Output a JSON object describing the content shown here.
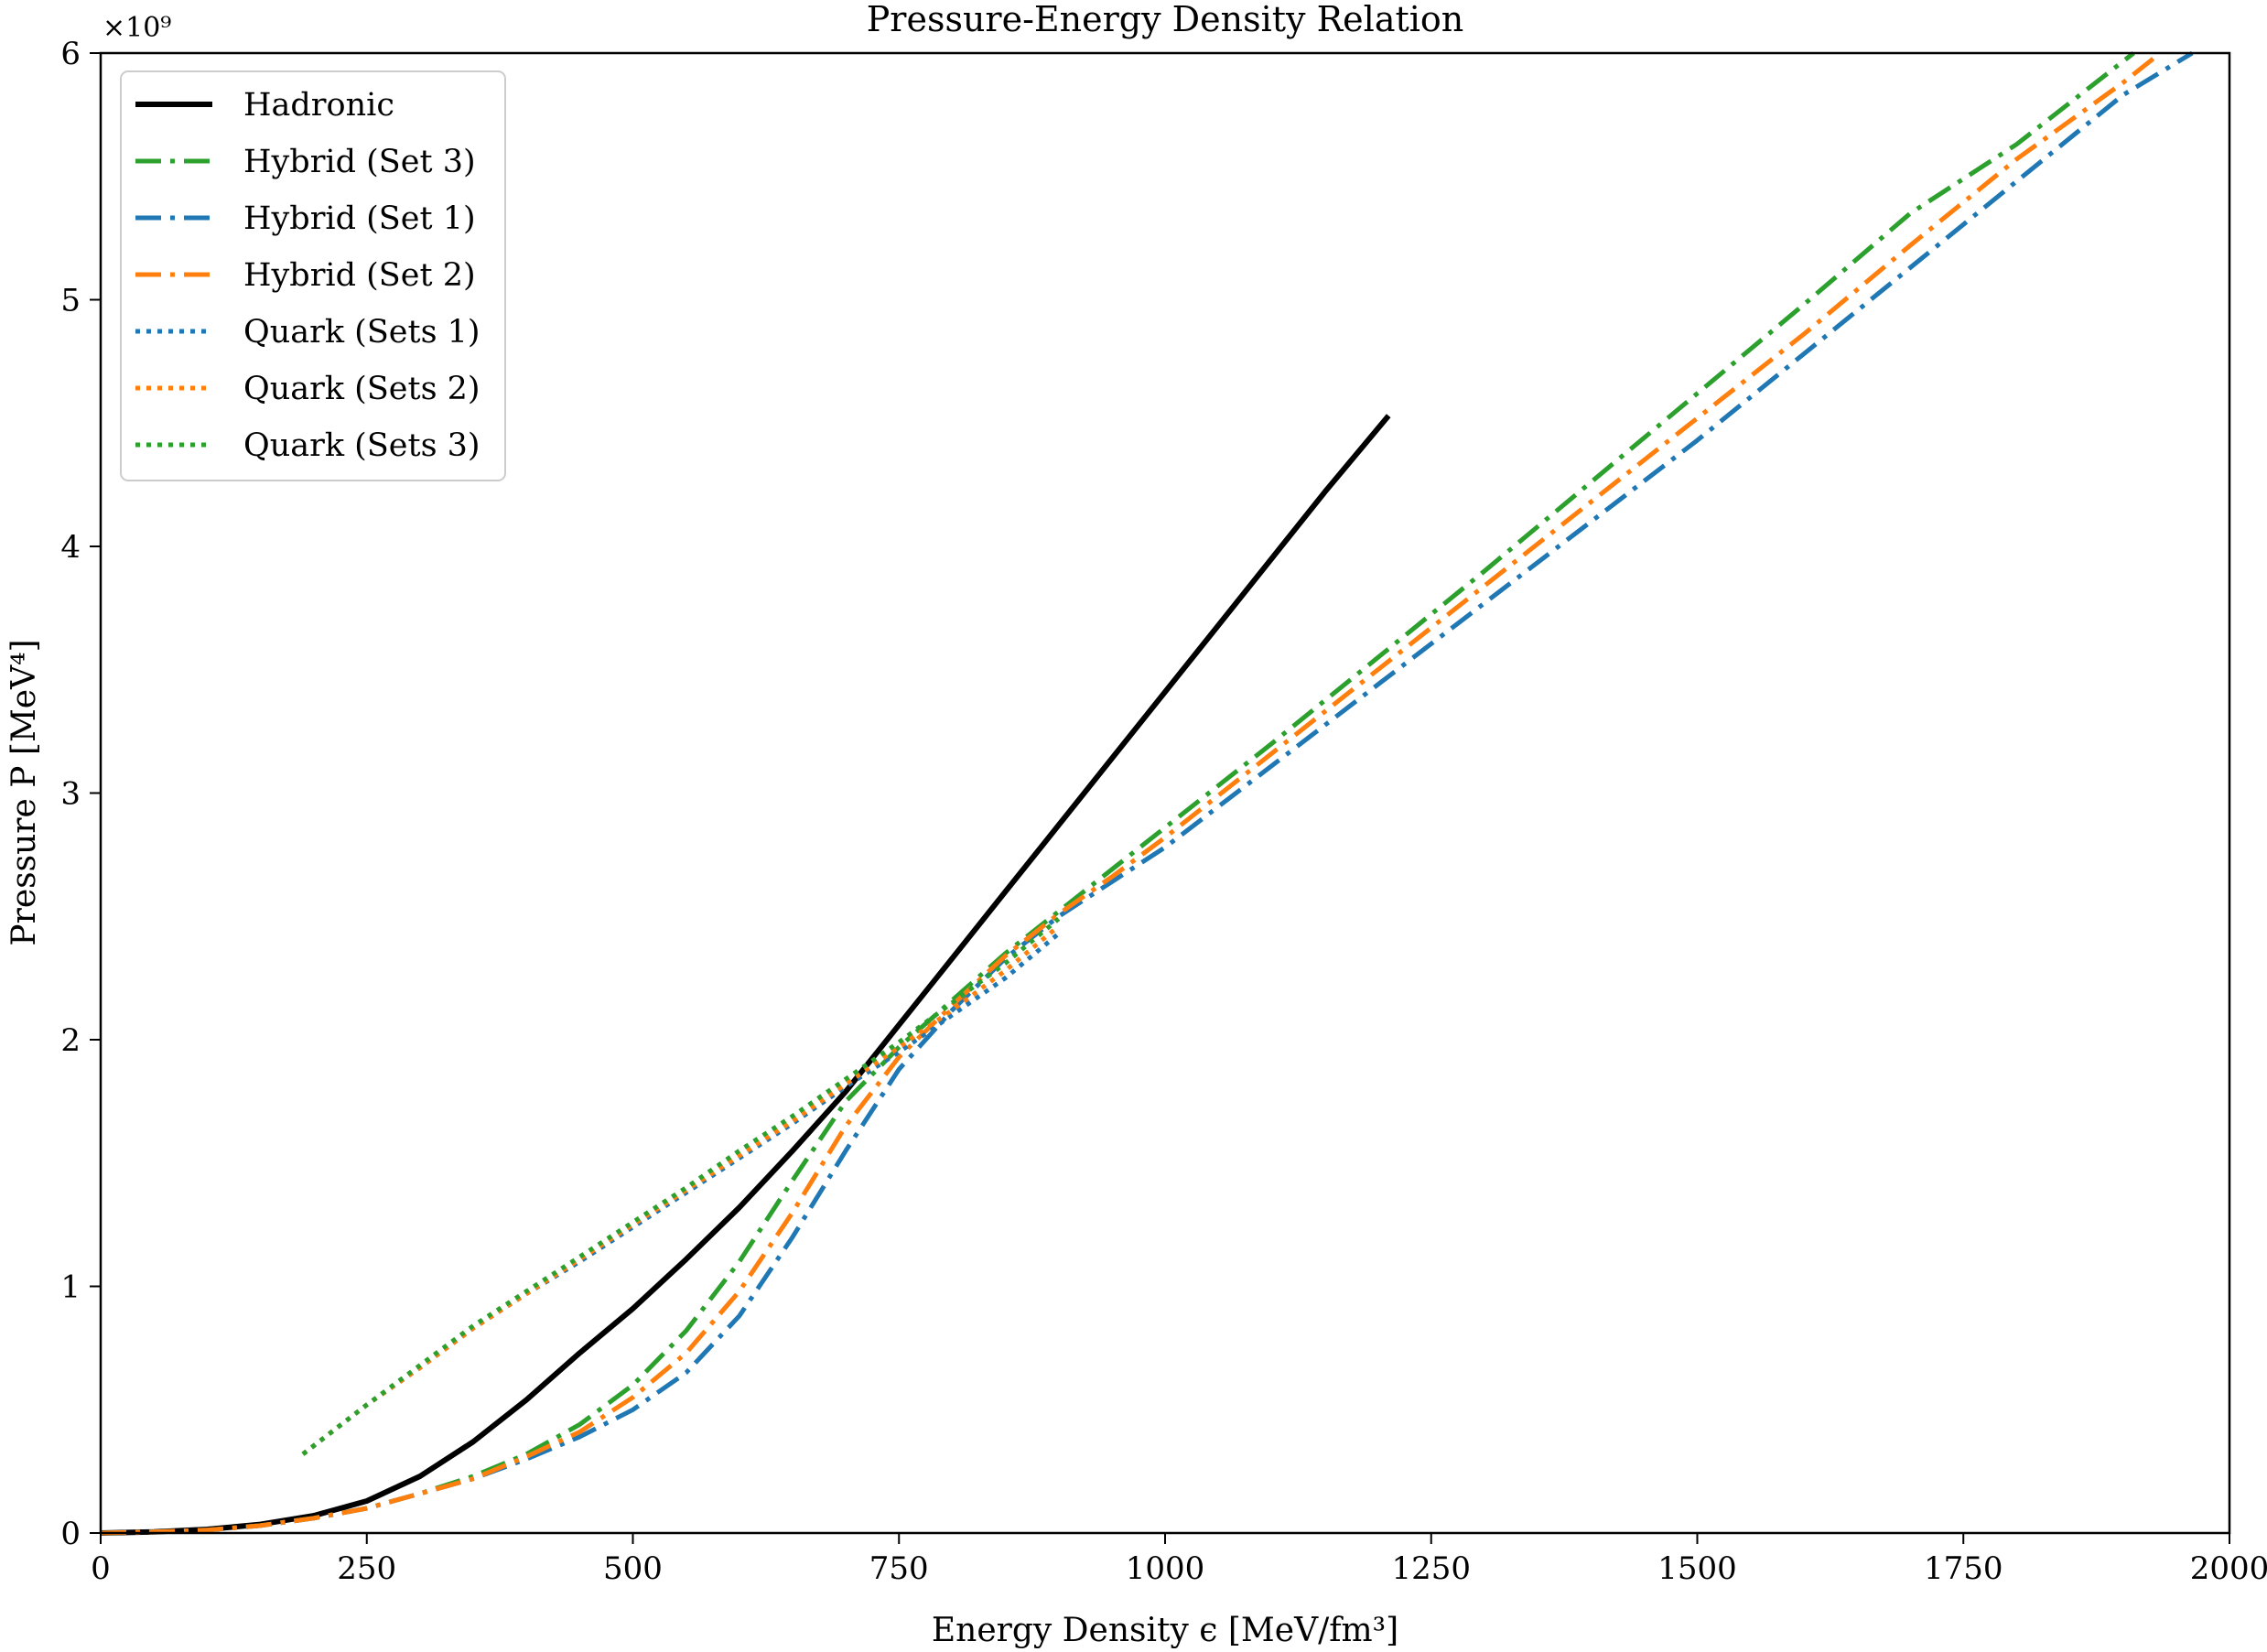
{
  "chart_data": {
    "type": "line",
    "title": "Pressure-Energy Density Relation",
    "xlabel": "Energy Density ϵ [MeV/fm³]",
    "ylabel": "Pressure P [MeV⁴]",
    "y_scale_label": "×10⁹",
    "xlim": [
      0,
      2000
    ],
    "ylim": [
      0,
      6
    ],
    "x_ticks": [
      0,
      250,
      500,
      750,
      1000,
      1250,
      1500,
      1750,
      2000
    ],
    "y_ticks": [
      0,
      1,
      2,
      3,
      4,
      5,
      6
    ],
    "x_tick_labels": [
      "0",
      "250",
      "500",
      "750",
      "1000",
      "1250",
      "1500",
      "1750",
      "2000"
    ],
    "y_tick_labels": [
      "0",
      "1",
      "2",
      "3",
      "4",
      "5",
      "6"
    ],
    "grid": false,
    "legend_position": "top-left",
    "series": [
      {
        "name": "Hadronic",
        "color": "#000000",
        "style": "solid",
        "x": [
          0,
          50,
          100,
          150,
          200,
          250,
          300,
          350,
          400,
          450,
          500,
          550,
          600,
          650,
          700,
          750,
          800,
          850,
          900,
          950,
          1000,
          1050,
          1100,
          1150,
          1210
        ],
        "y": [
          0,
          0.005,
          0.015,
          0.035,
          0.07,
          0.13,
          0.23,
          0.37,
          0.54,
          0.73,
          0.91,
          1.11,
          1.32,
          1.55,
          1.79,
          2.06,
          2.33,
          2.6,
          2.87,
          3.14,
          3.41,
          3.68,
          3.95,
          4.22,
          4.53
        ]
      },
      {
        "name": "Hybrid (Set 3)",
        "color": "#2ca02c",
        "style": "dashdot",
        "x": [
          0,
          50,
          100,
          150,
          200,
          250,
          300,
          350,
          400,
          450,
          500,
          550,
          600,
          650,
          700,
          750,
          800,
          850,
          900,
          950,
          1000,
          1100,
          1200,
          1300,
          1400,
          1500,
          1600,
          1700,
          1800,
          1910
        ],
        "y": [
          0,
          0.005,
          0.012,
          0.03,
          0.06,
          0.1,
          0.16,
          0.23,
          0.32,
          0.44,
          0.6,
          0.82,
          1.1,
          1.43,
          1.75,
          1.97,
          2.16,
          2.35,
          2.52,
          2.69,
          2.86,
          3.2,
          3.55,
          3.9,
          4.26,
          4.62,
          4.98,
          5.35,
          5.63,
          6.0
        ]
      },
      {
        "name": "Hybrid (Set 1)",
        "color": "#1f77b4",
        "style": "dashdot",
        "x": [
          0,
          50,
          100,
          150,
          200,
          250,
          300,
          350,
          400,
          450,
          500,
          550,
          600,
          650,
          700,
          750,
          800,
          850,
          900,
          950,
          1000,
          1100,
          1200,
          1300,
          1400,
          1500,
          1600,
          1700,
          1800,
          1900,
          1965
        ],
        "y": [
          0,
          0.005,
          0.012,
          0.03,
          0.06,
          0.1,
          0.16,
          0.22,
          0.3,
          0.39,
          0.5,
          0.65,
          0.88,
          1.2,
          1.55,
          1.88,
          2.12,
          2.33,
          2.5,
          2.64,
          2.78,
          3.11,
          3.44,
          3.77,
          4.1,
          4.43,
          4.78,
          5.13,
          5.48,
          5.83,
          6.0
        ]
      },
      {
        "name": "Hybrid (Set 2)",
        "color": "#ff7f0e",
        "style": "dashdot",
        "x": [
          0,
          50,
          100,
          150,
          200,
          250,
          300,
          350,
          400,
          450,
          500,
          550,
          600,
          650,
          700,
          750,
          800,
          850,
          900,
          950,
          1000,
          1100,
          1200,
          1300,
          1400,
          1500,
          1600,
          1700,
          1800,
          1900,
          1935
        ],
        "y": [
          0,
          0.005,
          0.012,
          0.03,
          0.06,
          0.1,
          0.16,
          0.22,
          0.31,
          0.41,
          0.55,
          0.73,
          0.98,
          1.3,
          1.65,
          1.93,
          2.14,
          2.34,
          2.51,
          2.66,
          2.82,
          3.16,
          3.5,
          3.84,
          4.18,
          4.52,
          4.86,
          5.22,
          5.57,
          5.88,
          6.0
        ]
      },
      {
        "name": "Quark (Sets 1)",
        "color": "#1f77b4",
        "style": "dotted",
        "x": [
          190,
          250,
          300,
          350,
          400,
          450,
          500,
          550,
          600,
          650,
          700,
          750,
          800,
          850,
          900
        ],
        "y": [
          0.32,
          0.52,
          0.67,
          0.83,
          0.97,
          1.1,
          1.24,
          1.38,
          1.52,
          1.66,
          1.81,
          1.95,
          2.1,
          2.25,
          2.43
        ]
      },
      {
        "name": "Quark (Sets 2)",
        "color": "#ff7f0e",
        "style": "dotted",
        "x": [
          190,
          250,
          300,
          350,
          400,
          450,
          500,
          550,
          600,
          650,
          700,
          750,
          800,
          850,
          900
        ],
        "y": [
          0.32,
          0.52,
          0.67,
          0.83,
          0.97,
          1.11,
          1.25,
          1.39,
          1.53,
          1.67,
          1.82,
          1.97,
          2.12,
          2.28,
          2.46
        ]
      },
      {
        "name": "Quark (Sets 3)",
        "color": "#2ca02c",
        "style": "dotted",
        "x": [
          190,
          250,
          300,
          350,
          400,
          450,
          500,
          550,
          600,
          650,
          700,
          750,
          800,
          850,
          900
        ],
        "y": [
          0.32,
          0.52,
          0.68,
          0.84,
          0.98,
          1.12,
          1.26,
          1.4,
          1.55,
          1.69,
          1.84,
          1.99,
          2.15,
          2.31,
          2.49
        ]
      }
    ]
  }
}
